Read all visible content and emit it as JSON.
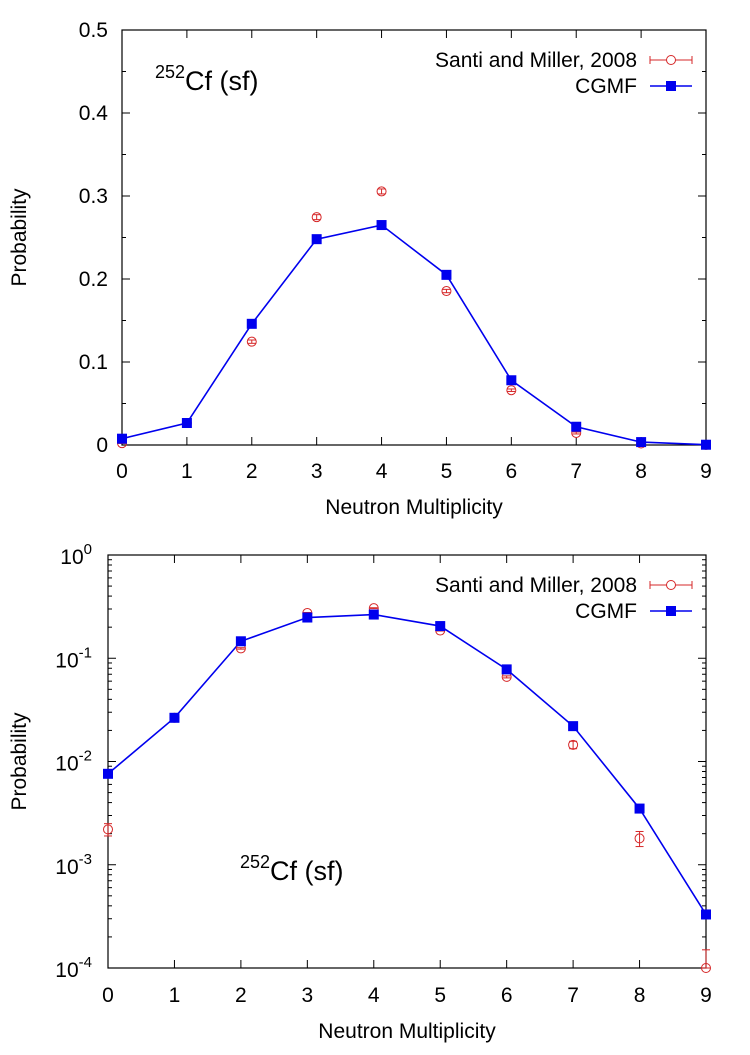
{
  "colors": {
    "measured": "#d62728",
    "model": "#0000ee",
    "axes": "#000000"
  },
  "chart_data": [
    {
      "type": "line",
      "yscale": "linear",
      "title": "",
      "annotation": {
        "base": "Cf (sf)",
        "superscript": "252"
      },
      "xlabel": "Neutron Multiplicity",
      "ylabel": "Probability",
      "xlim": [
        0,
        9
      ],
      "ylim": [
        0,
        0.5
      ],
      "xticks": [
        "0",
        "1",
        "2",
        "3",
        "4",
        "5",
        "6",
        "7",
        "8",
        "9"
      ],
      "yticks": [
        "0",
        "0.1",
        "0.2",
        "0.3",
        "0.4",
        "0.5"
      ],
      "legend_position": "top-right",
      "grid": false,
      "series": [
        {
          "name": "Santi and Miller, 2008",
          "marker": "open-circle-errorbar",
          "line": false,
          "x": [
            0,
            1,
            2,
            3,
            4,
            5,
            6,
            7,
            8,
            9
          ],
          "y": [
            0.0022,
            0.0265,
            0.1245,
            0.2745,
            0.3055,
            0.1855,
            0.066,
            0.0145,
            0.0018,
            0.0001
          ],
          "err": [
            0.0003,
            0.001,
            0.002,
            0.003,
            0.003,
            0.002,
            0.0015,
            0.0012,
            0.0003,
            5e-05
          ]
        },
        {
          "name": "CGMF",
          "marker": "filled-square",
          "line": true,
          "x": [
            0,
            1,
            2,
            3,
            4,
            5,
            6,
            7,
            8,
            9
          ],
          "y": [
            0.0076,
            0.0265,
            0.146,
            0.248,
            0.265,
            0.205,
            0.078,
            0.022,
            0.0035,
            0.00033
          ]
        }
      ]
    },
    {
      "type": "line",
      "yscale": "log",
      "title": "",
      "annotation": {
        "base": "Cf (sf)",
        "superscript": "252"
      },
      "xlabel": "Neutron Multiplicity",
      "ylabel": "Probability",
      "xlim": [
        0,
        9
      ],
      "ylim": [
        0.0001,
        1
      ],
      "xticks": [
        "0",
        "1",
        "2",
        "3",
        "4",
        "5",
        "6",
        "7",
        "8",
        "9"
      ],
      "yticks": [
        {
          "base": "10",
          "exp": "0"
        },
        {
          "base": "10",
          "exp": "-1"
        },
        {
          "base": "10",
          "exp": "-2"
        },
        {
          "base": "10",
          "exp": "-3"
        },
        {
          "base": "10",
          "exp": "-4"
        }
      ],
      "legend_position": "top-right",
      "grid": false,
      "series": [
        {
          "name": "Santi and Miller, 2008",
          "marker": "open-circle-errorbar",
          "line": false,
          "x": [
            0,
            1,
            2,
            3,
            4,
            5,
            6,
            7,
            8,
            9
          ],
          "y": [
            0.0022,
            0.0265,
            0.1245,
            0.2745,
            0.3055,
            0.1855,
            0.066,
            0.0145,
            0.0018,
            0.0001
          ],
          "err": [
            0.0003,
            0.001,
            0.002,
            0.003,
            0.003,
            0.002,
            0.0015,
            0.0012,
            0.0003,
            5e-05
          ]
        },
        {
          "name": "CGMF",
          "marker": "filled-square",
          "line": true,
          "x": [
            0,
            1,
            2,
            3,
            4,
            5,
            6,
            7,
            8,
            9
          ],
          "y": [
            0.0076,
            0.0265,
            0.146,
            0.248,
            0.265,
            0.205,
            0.078,
            0.022,
            0.0035,
            0.00033
          ]
        }
      ]
    }
  ]
}
